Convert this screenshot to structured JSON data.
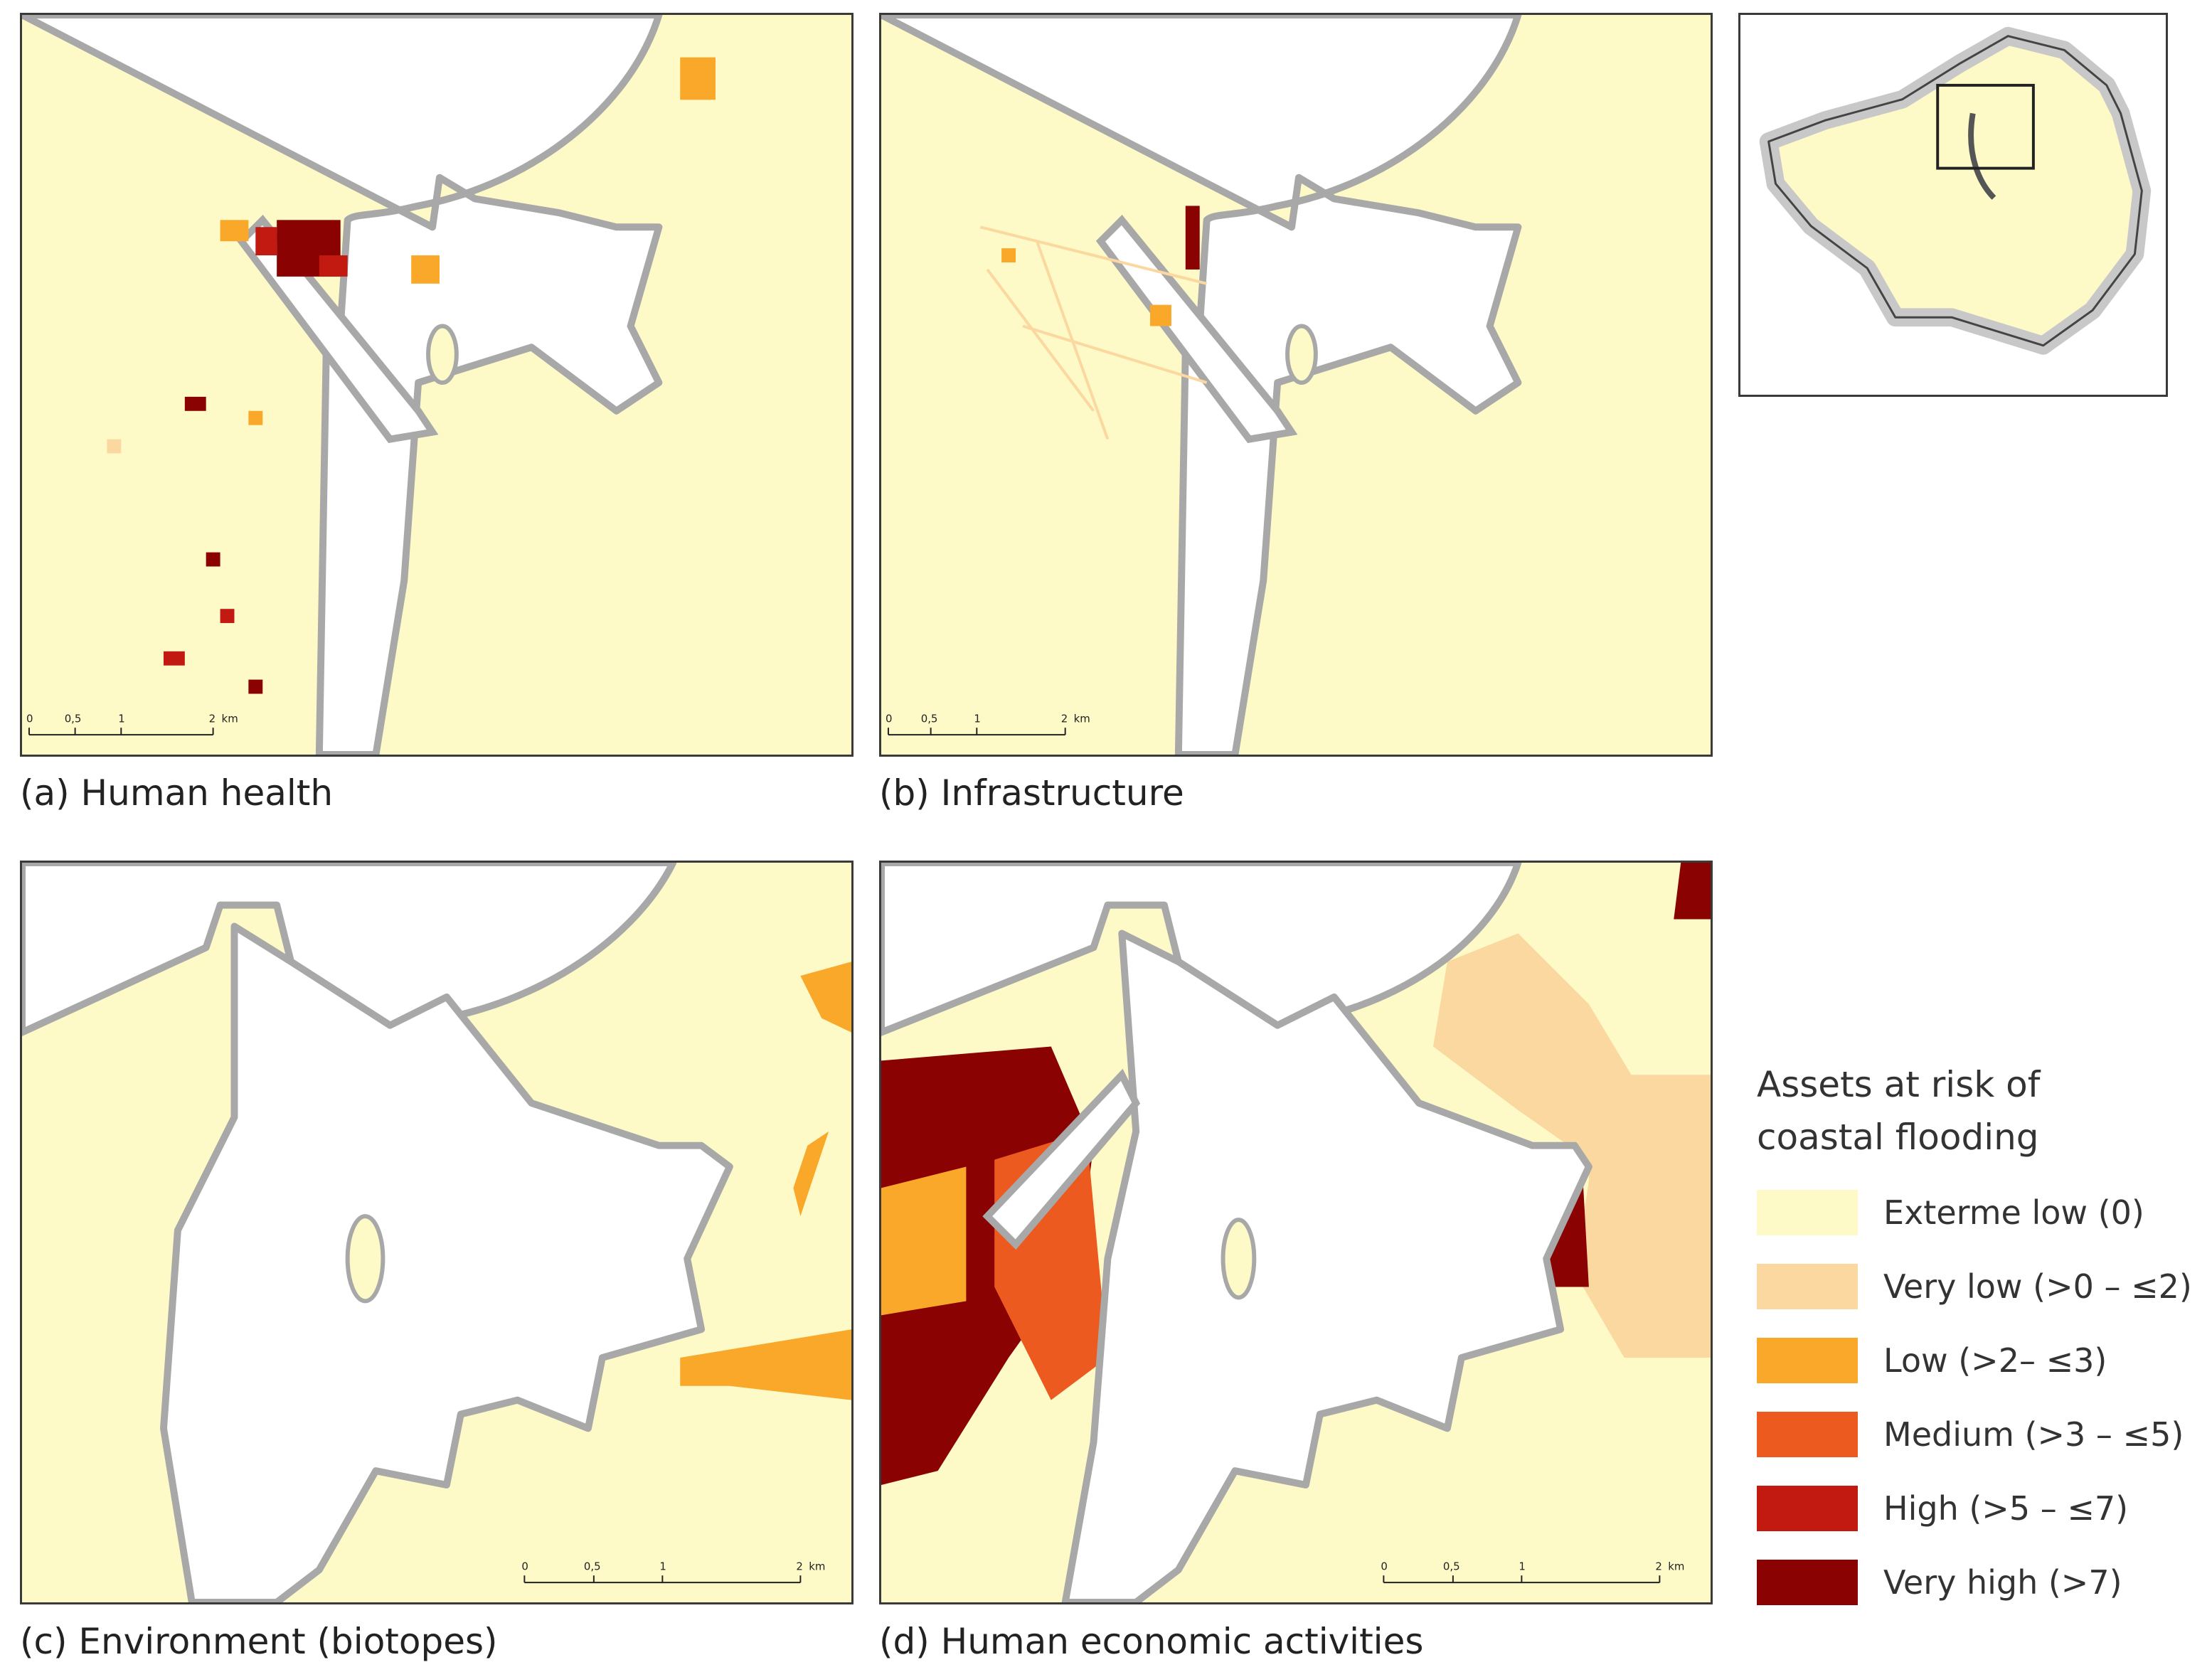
{
  "panels": {
    "a": {
      "caption": "(a) Human health"
    },
    "b": {
      "caption": "(b) Infrastructure"
    },
    "c": {
      "caption": "(c) Environment (biotopes)"
    },
    "d": {
      "caption": "(d) Human economic activities"
    }
  },
  "scale_bar": {
    "ticks": [
      "0",
      "0,5",
      "1",
      "2"
    ],
    "unit": "km"
  },
  "legend": {
    "title_line1": "Assets at risk of",
    "title_line2": "coastal flooding",
    "classes": [
      {
        "label": "Exterme low (0)",
        "color": "#fdfac8"
      },
      {
        "label": "Very low (>0 – ≤2)",
        "color": "#fbd8a0"
      },
      {
        "label": "Low (>2– ≤3)",
        "color": "#faa829"
      },
      {
        "label": "Medium (>3 – ≤5)",
        "color": "#ec5a1f"
      },
      {
        "label": "High (>5 – ≤7)",
        "color": "#c21a11"
      },
      {
        "label": "Very high (>7)",
        "color": "#8a0202"
      }
    ]
  },
  "colors": {
    "land": "#fdfac8",
    "water": "#ffffff",
    "shore": "#a8a8a8"
  }
}
